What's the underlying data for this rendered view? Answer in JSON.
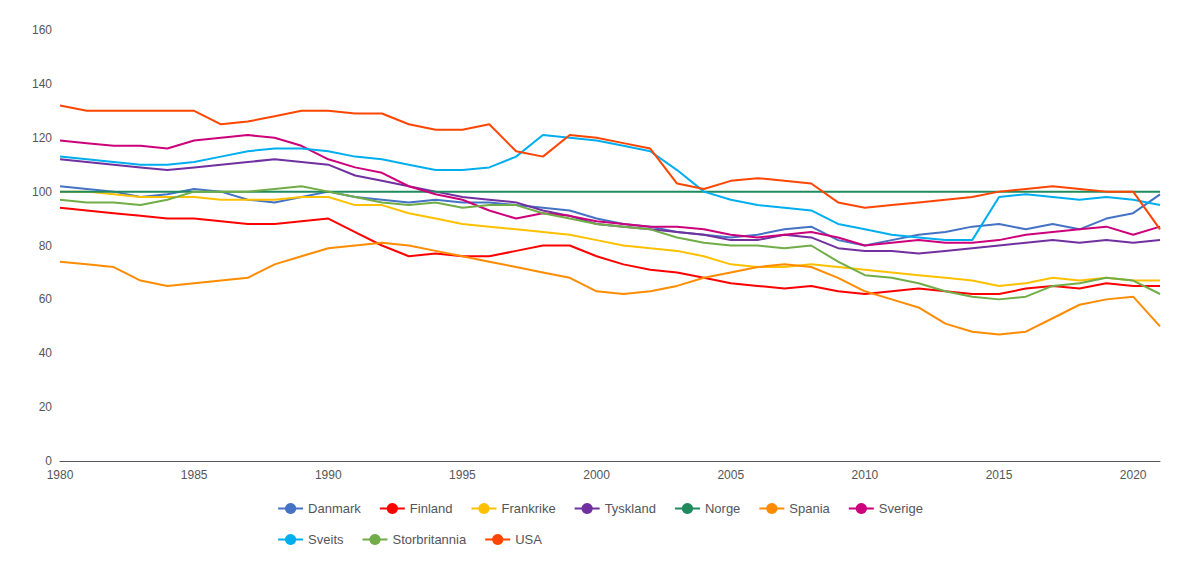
{
  "chart_data": {
    "type": "line",
    "x": [
      1980,
      1981,
      1982,
      1983,
      1984,
      1985,
      1986,
      1987,
      1988,
      1989,
      1990,
      1991,
      1992,
      1993,
      1994,
      1995,
      1996,
      1997,
      1998,
      1999,
      2000,
      2001,
      2002,
      2003,
      2004,
      2005,
      2006,
      2007,
      2008,
      2009,
      2010,
      2011,
      2012,
      2013,
      2014,
      2015,
      2016,
      2017,
      2018,
      2019,
      2020,
      2021
    ],
    "series": [
      {
        "name": "Danmark",
        "color": "#4472C4",
        "values": [
          102,
          101,
          100,
          98,
          99,
          101,
          100,
          97,
          96,
          98,
          100,
          98,
          97,
          96,
          97,
          96,
          96,
          95,
          94,
          93,
          90,
          88,
          87,
          85,
          84,
          83,
          84,
          86,
          87,
          82,
          80,
          82,
          84,
          85,
          87,
          88,
          86,
          88,
          86,
          90,
          92,
          99
        ]
      },
      {
        "name": "Finland",
        "color": "#FF0000",
        "values": [
          94,
          93,
          92,
          91,
          90,
          90,
          89,
          88,
          88,
          89,
          90,
          85,
          80,
          76,
          77,
          76,
          76,
          78,
          80,
          80,
          76,
          73,
          71,
          70,
          68,
          66,
          65,
          64,
          65,
          63,
          62,
          63,
          64,
          63,
          62,
          62,
          64,
          65,
          64,
          66,
          65,
          65
        ]
      },
      {
        "name": "Frankrike",
        "color": "#FFC000",
        "values": [
          100,
          100,
          99,
          98,
          98,
          98,
          97,
          97,
          97,
          98,
          98,
          95,
          95,
          92,
          90,
          88,
          87,
          86,
          85,
          84,
          82,
          80,
          79,
          78,
          76,
          73,
          72,
          72,
          73,
          72,
          71,
          70,
          69,
          68,
          67,
          65,
          66,
          68,
          67,
          68,
          67,
          67
        ]
      },
      {
        "name": "Tyskland",
        "color": "#7030A0",
        "values": [
          112,
          111,
          110,
          109,
          108,
          109,
          110,
          111,
          112,
          111,
          110,
          106,
          104,
          102,
          100,
          98,
          97,
          96,
          93,
          91,
          88,
          87,
          86,
          85,
          84,
          82,
          82,
          84,
          83,
          79,
          78,
          78,
          77,
          78,
          79,
          80,
          81,
          82,
          81,
          82,
          81,
          82
        ]
      },
      {
        "name": "Norge",
        "color": "#1F8A5E",
        "values": [
          100,
          100,
          100,
          100,
          100,
          100,
          100,
          100,
          100,
          100,
          100,
          100,
          100,
          100,
          100,
          100,
          100,
          100,
          100,
          100,
          100,
          100,
          100,
          100,
          100,
          100,
          100,
          100,
          100,
          100,
          100,
          100,
          100,
          100,
          100,
          100,
          100,
          100,
          100,
          100,
          100,
          100
        ]
      },
      {
        "name": "Spania",
        "color": "#FF8C00",
        "values": [
          74,
          73,
          72,
          67,
          65,
          66,
          67,
          68,
          73,
          76,
          79,
          80,
          81,
          80,
          78,
          76,
          74,
          72,
          70,
          68,
          63,
          62,
          63,
          65,
          68,
          70,
          72,
          73,
          72,
          68,
          63,
          60,
          57,
          51,
          48,
          47,
          48,
          53,
          58,
          60,
          61,
          50
        ]
      },
      {
        "name": "Sverige",
        "color": "#CC007A",
        "values": [
          119,
          118,
          117,
          117,
          116,
          119,
          120,
          121,
          120,
          117,
          112,
          109,
          107,
          102,
          99,
          97,
          93,
          90,
          92,
          91,
          89,
          88,
          87,
          87,
          86,
          84,
          83,
          84,
          85,
          83,
          80,
          81,
          82,
          81,
          81,
          82,
          84,
          85,
          86,
          87,
          84,
          87
        ]
      },
      {
        "name": "Sveits",
        "color": "#00AEEF",
        "values": [
          113,
          112,
          111,
          110,
          110,
          111,
          113,
          115,
          116,
          116,
          115,
          113,
          112,
          110,
          108,
          108,
          109,
          113,
          121,
          120,
          119,
          117,
          115,
          108,
          100,
          97,
          95,
          94,
          93,
          88,
          86,
          84,
          83,
          82,
          82,
          98,
          99,
          98,
          97,
          98,
          97,
          95
        ]
      },
      {
        "name": "Storbritannia",
        "color": "#70AD47",
        "values": [
          97,
          96,
          96,
          95,
          97,
          100,
          100,
          100,
          101,
          102,
          100,
          98,
          96,
          95,
          96,
          94,
          95,
          95,
          92,
          90,
          88,
          87,
          86,
          83,
          81,
          80,
          80,
          79,
          80,
          74,
          69,
          68,
          66,
          63,
          61,
          60,
          61,
          65,
          66,
          68,
          67,
          62
        ]
      },
      {
        "name": "USA",
        "color": "#FF4500",
        "values": [
          132,
          130,
          130,
          130,
          130,
          130,
          125,
          126,
          128,
          130,
          130,
          129,
          129,
          125,
          123,
          123,
          125,
          115,
          113,
          121,
          120,
          118,
          116,
          103,
          101,
          104,
          105,
          104,
          103,
          96,
          94,
          95,
          96,
          97,
          98,
          100,
          101,
          102,
          101,
          100,
          100,
          86
        ]
      }
    ],
    "xlim": [
      1980,
      2021
    ],
    "xticks": [
      1980,
      1985,
      1990,
      1995,
      2000,
      2005,
      2010,
      2015,
      2020
    ],
    "ylim": [
      0,
      160
    ],
    "yticks": [
      0,
      20,
      40,
      60,
      80,
      100,
      120,
      140,
      160
    ],
    "grid": false,
    "legend": "bottom"
  }
}
